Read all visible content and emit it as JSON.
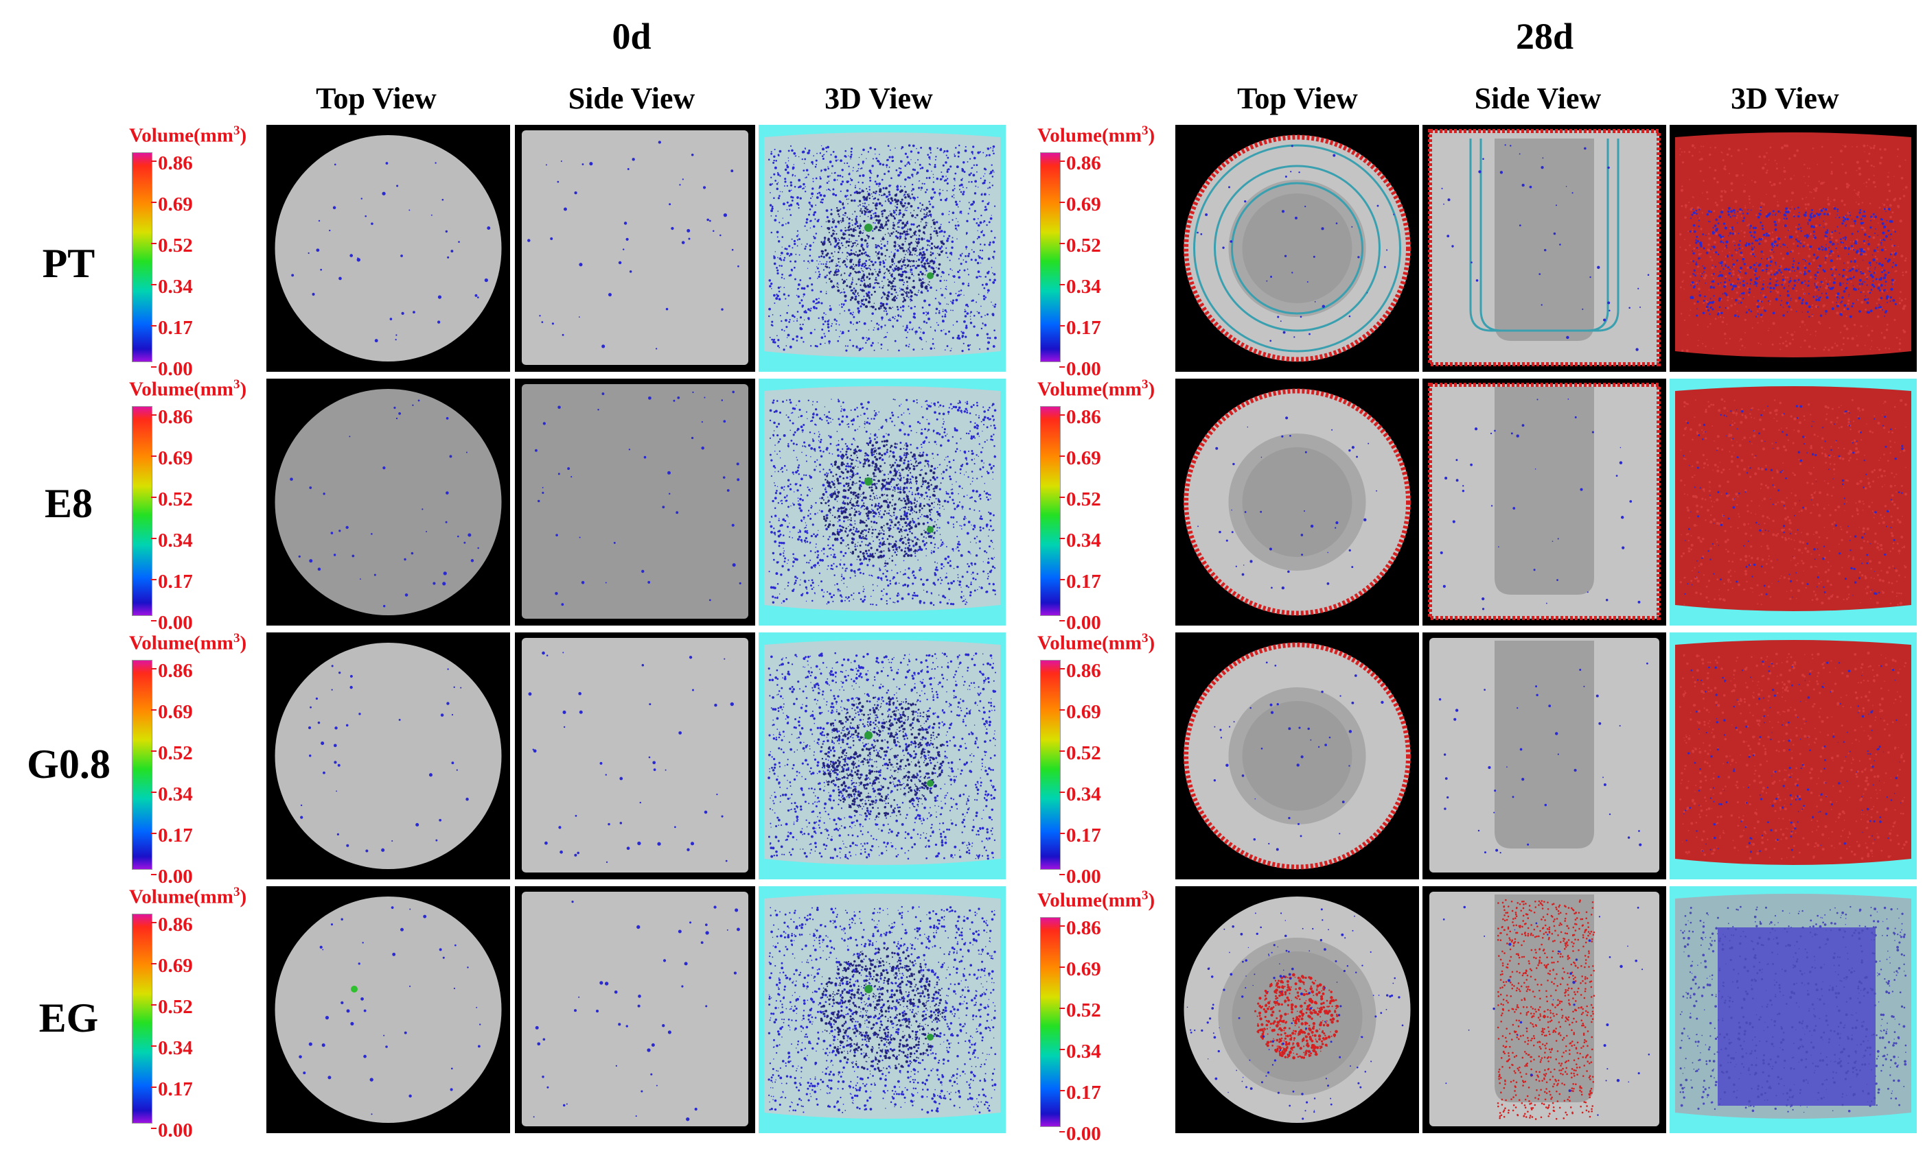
{
  "groups": [
    "0d",
    "28d"
  ],
  "views": [
    "Top View",
    "Side View",
    "3D View"
  ],
  "rows": [
    "PT",
    "E8",
    "G0.8",
    "EG"
  ],
  "colorbar": {
    "title": "Volume(mm",
    "title_sup": "3",
    "title_close": ")",
    "ticks": [
      "0.86",
      "0.69",
      "0.52",
      "0.34",
      "0.17",
      "0.00"
    ]
  },
  "colors": {
    "label_red": "#e8131b",
    "pore_blue": "#2a2ad0",
    "crack_red": "#d42020",
    "bg_cyan": "#66f0f0"
  }
}
